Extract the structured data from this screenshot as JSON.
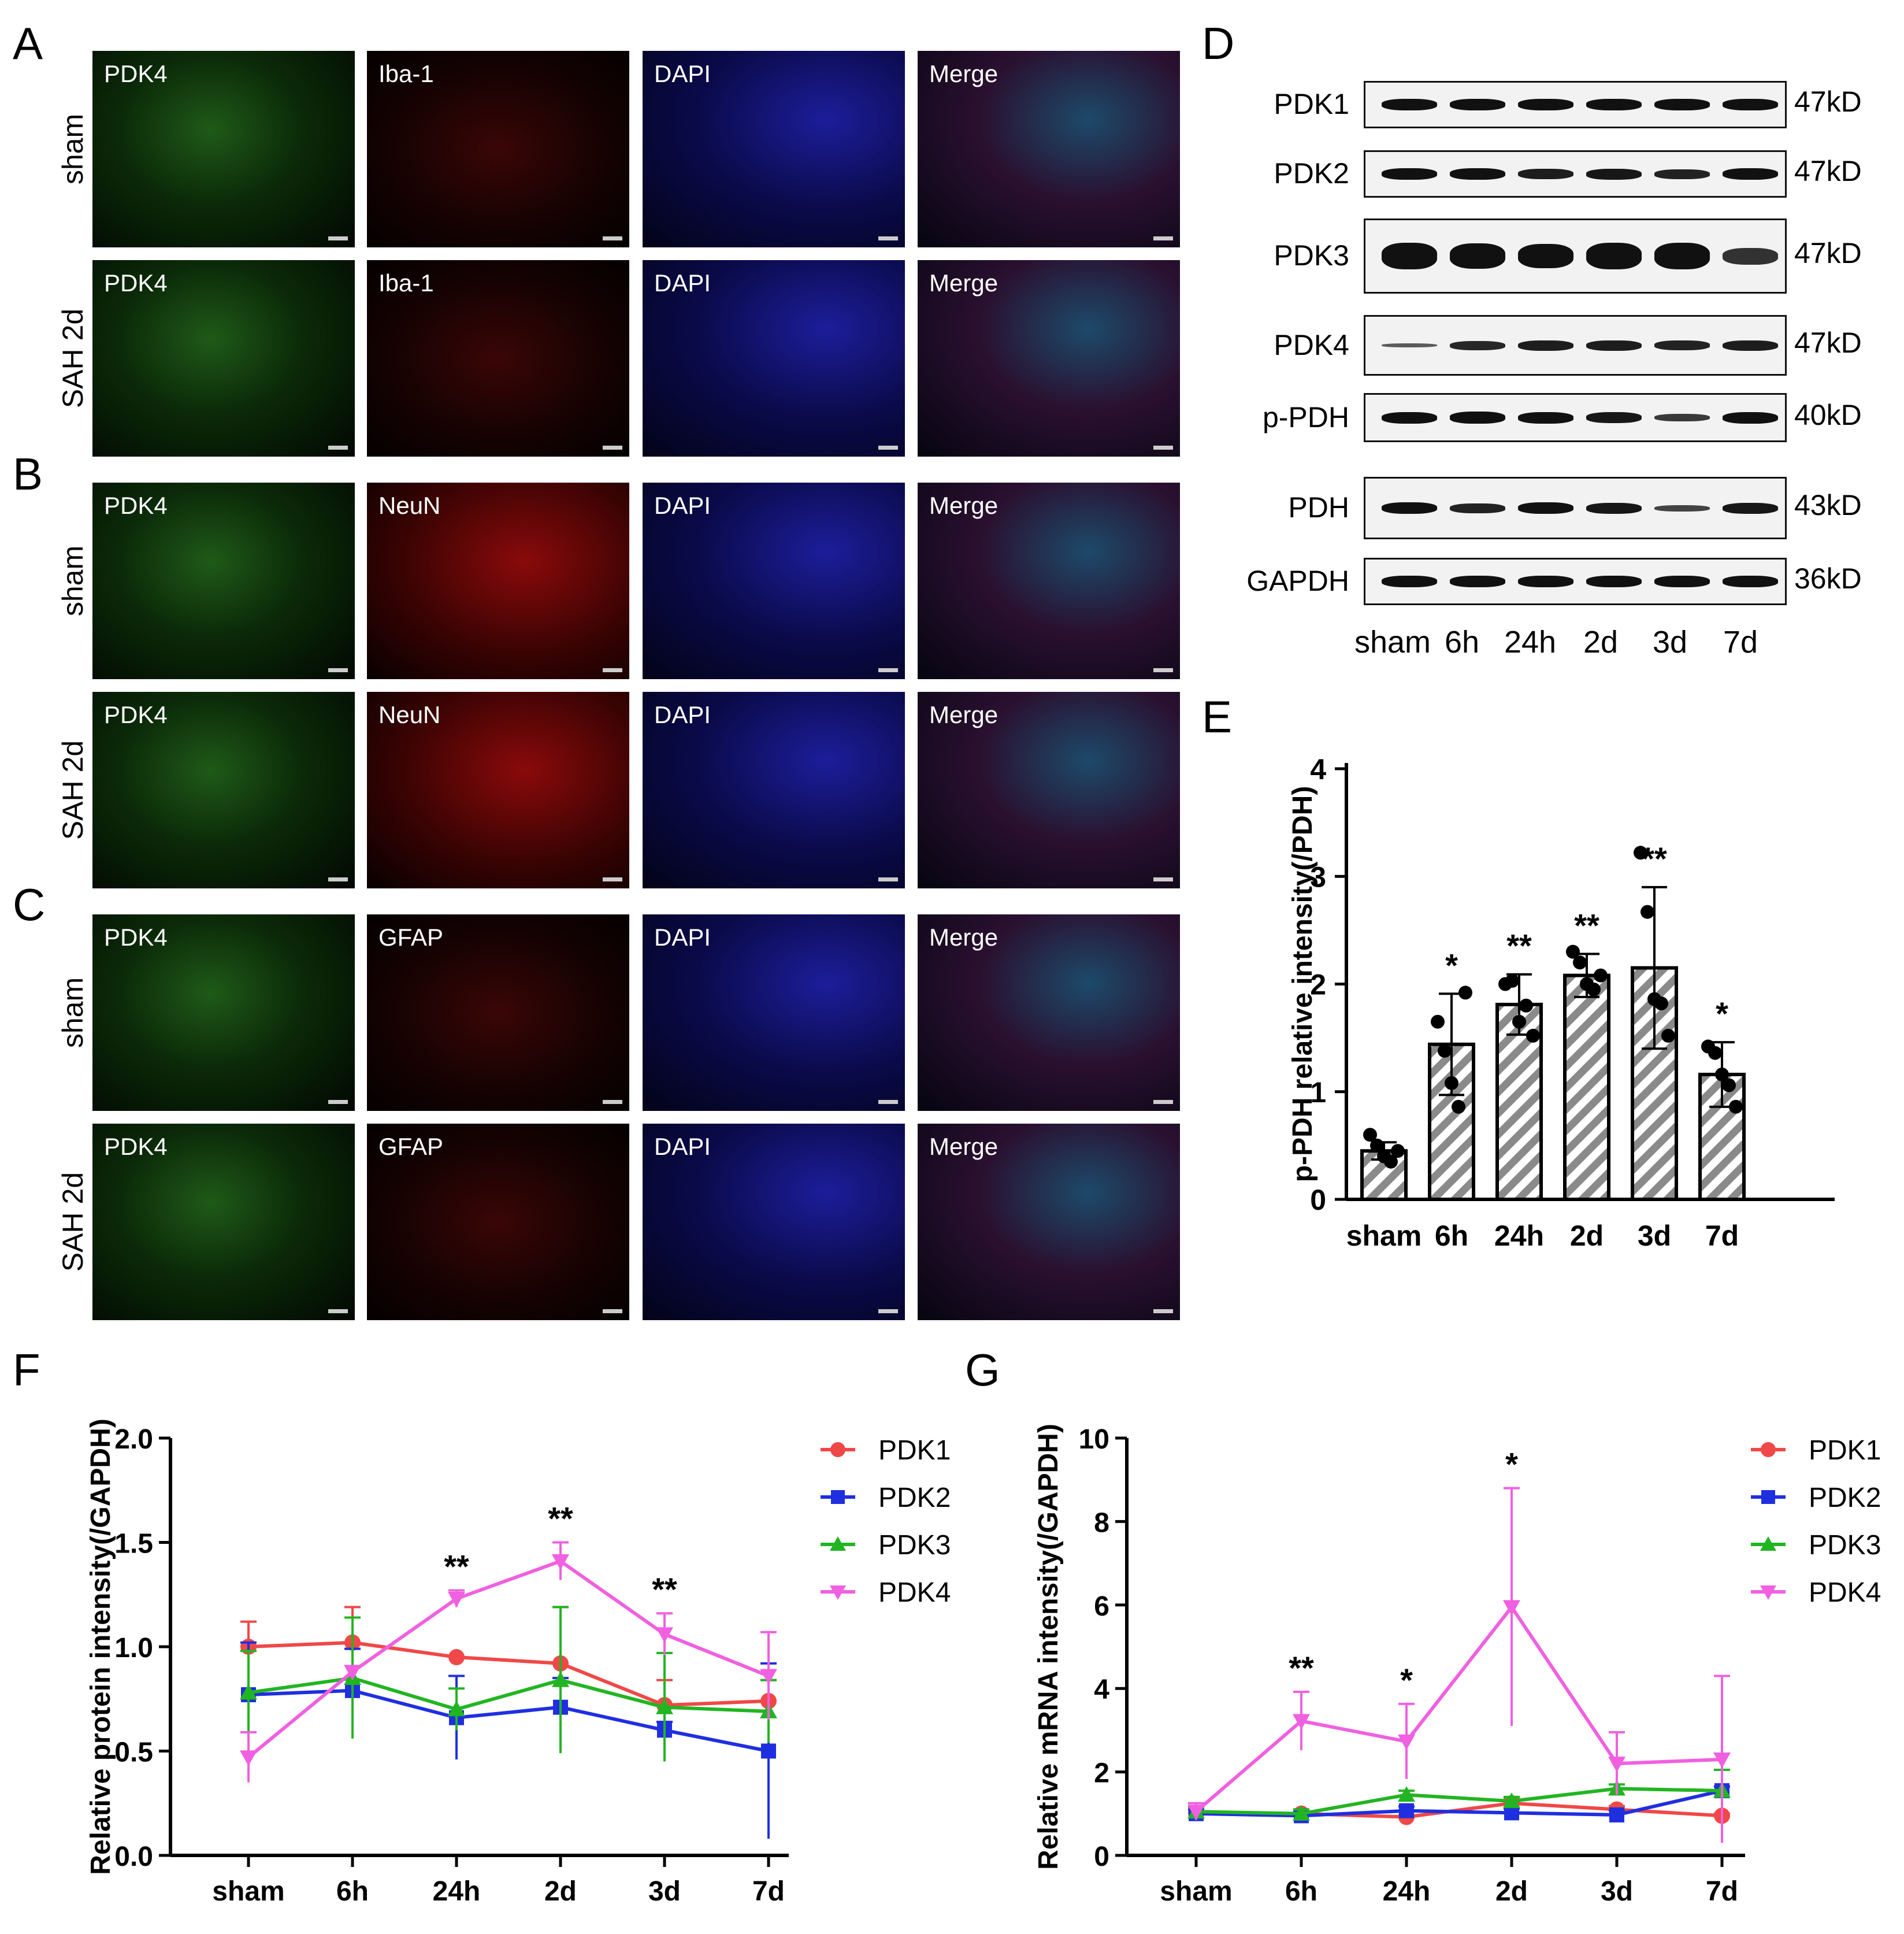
{
  "panels": {
    "A": "A",
    "B": "B",
    "C": "C",
    "D": "D",
    "E": "E",
    "F": "F",
    "G": "G"
  },
  "if_rows": [
    {
      "label": "sham",
      "channels": [
        "PDK4",
        "Iba-1",
        "DAPI",
        "Merge"
      ]
    },
    {
      "label": "SAH 2d",
      "channels": [
        "PDK4",
        "Iba-1",
        "DAPI",
        "Merge"
      ]
    },
    {
      "label": "sham",
      "channels": [
        "PDK4",
        "NeuN",
        "DAPI",
        "Merge"
      ]
    },
    {
      "label": "SAH 2d",
      "channels": [
        "PDK4",
        "NeuN",
        "DAPI",
        "Merge"
      ]
    },
    {
      "label": "sham",
      "channels": [
        "PDK4",
        "GFAP",
        "DAPI",
        "Merge"
      ]
    },
    {
      "label": "SAH 2d",
      "channels": [
        "PDK4",
        "GFAP",
        "DAPI",
        "Merge"
      ]
    }
  ],
  "colors": {
    "PDK1": "#f04848",
    "PDK2": "#1f2fe0",
    "PDK3": "#22b522",
    "PDK4": "#f060e0"
  },
  "western": {
    "rows": [
      {
        "name": "PDK1",
        "size": "47kD"
      },
      {
        "name": "PDK2",
        "size": "47kD"
      },
      {
        "name": "PDK3",
        "size": "47kD"
      },
      {
        "name": "PDK4",
        "size": "47kD"
      },
      {
        "name": "p-PDH",
        "size": "40kD"
      },
      {
        "name": "PDH",
        "size": "43kD"
      },
      {
        "name": "GAPDH",
        "size": "36kD"
      }
    ],
    "lanes": [
      "sham",
      "6h",
      "24h",
      "2d",
      "3d",
      "7d"
    ]
  },
  "chart_data": [
    {
      "panel": "E",
      "type": "bar",
      "categories": [
        "sham",
        "6h",
        "24h",
        "2d",
        "3d",
        "7d"
      ],
      "values": [
        0.45,
        1.44,
        1.81,
        2.08,
        2.15,
        1.16
      ],
      "errors": [
        0.08,
        0.47,
        0.28,
        0.2,
        0.75,
        0.3
      ],
      "points": [
        [
          0.6,
          0.5,
          0.4,
          0.35,
          0.45
        ],
        [
          1.65,
          1.38,
          1.08,
          0.86,
          1.92
        ],
        [
          2.0,
          2.03,
          1.65,
          1.8,
          1.52
        ],
        [
          2.3,
          2.2,
          2.0,
          1.95,
          2.08
        ],
        [
          3.22,
          2.67,
          1.86,
          1.82,
          1.52
        ],
        [
          1.42,
          1.36,
          1.16,
          1.06,
          0.86
        ]
      ],
      "significance": [
        "",
        "*",
        "**",
        "**",
        "**",
        "*"
      ],
      "ylabel": "p-PDH relative  intensity(/PDH)",
      "ylim": [
        0,
        4
      ],
      "yticks": [
        "0",
        "1",
        "2",
        "3",
        "4"
      ]
    },
    {
      "panel": "F",
      "type": "line",
      "categories": [
        "sham",
        "6h",
        "24h",
        "2d",
        "3d",
        "7d"
      ],
      "ylabel": "Relative protein intensity(/GAPDH)",
      "ylim": [
        0,
        2
      ],
      "yticks": [
        "0.0",
        "0.5",
        "1.0",
        "1.5",
        "2.0"
      ],
      "series": [
        {
          "name": "PDK1",
          "values": [
            1.0,
            1.02,
            0.95,
            0.92,
            0.72,
            0.74
          ],
          "errors": [
            0.12,
            0.17,
            0.0,
            0.27,
            0.12,
            0.1
          ]
        },
        {
          "name": "PDK2",
          "values": [
            0.77,
            0.79,
            0.66,
            0.71,
            0.6,
            0.5
          ],
          "errors": [
            0.25,
            0.2,
            0.2,
            0.14,
            0.04,
            0.42
          ]
        },
        {
          "name": "PDK3",
          "values": [
            0.78,
            0.85,
            0.7,
            0.84,
            0.71,
            0.69
          ],
          "errors": [
            0.2,
            0.29,
            0.1,
            0.35,
            0.26,
            0.15
          ]
        },
        {
          "name": "PDK4",
          "values": [
            0.47,
            0.88,
            1.23,
            1.41,
            1.06,
            0.86
          ],
          "errors": [
            0.12,
            0.0,
            0.04,
            0.09,
            0.1,
            0.21
          ]
        }
      ],
      "significance": [
        "",
        "",
        "**",
        "**",
        "**",
        ""
      ]
    },
    {
      "panel": "G",
      "type": "line",
      "categories": [
        "sham",
        "6h",
        "24h",
        "2d",
        "3d",
        "7d"
      ],
      "ylabel": "Relative mRNA intensity(/GAPDH)",
      "ylim": [
        0,
        10
      ],
      "yticks": [
        "0",
        "2",
        "4",
        "6",
        "8",
        "10"
      ],
      "series": [
        {
          "name": "PDK1",
          "values": [
            1.02,
            1.0,
            0.92,
            1.25,
            1.1,
            0.95
          ],
          "errors": [
            0.15,
            0.1,
            0.05,
            0.1,
            0.08,
            0.05
          ]
        },
        {
          "name": "PDK2",
          "values": [
            1.0,
            0.95,
            1.07,
            1.02,
            0.97,
            1.55
          ],
          "errors": [
            0.1,
            0.1,
            0.1,
            0.1,
            0.1,
            0.1
          ]
        },
        {
          "name": "PDK3",
          "values": [
            1.05,
            1.0,
            1.45,
            1.3,
            1.6,
            1.55
          ],
          "errors": [
            0.1,
            0.1,
            0.1,
            0.1,
            0.1,
            0.5
          ]
        },
        {
          "name": "PDK4",
          "values": [
            1.05,
            3.22,
            2.73,
            5.95,
            2.2,
            2.3
          ],
          "errors": [
            0.2,
            0.7,
            0.9,
            2.85,
            0.75,
            2.0
          ]
        }
      ],
      "significance": [
        "",
        "**",
        "*",
        "*",
        "",
        ""
      ]
    }
  ]
}
